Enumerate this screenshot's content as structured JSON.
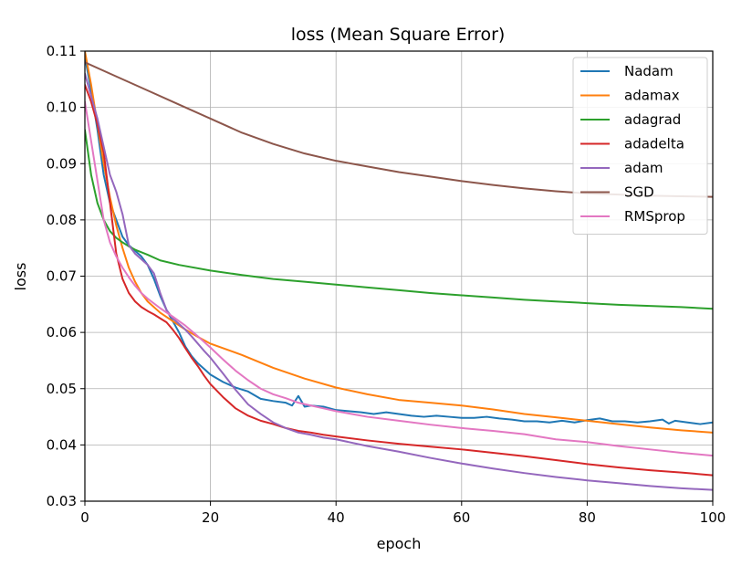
{
  "chart_data": {
    "type": "line",
    "title": "loss (Mean Square Error)",
    "xlabel": "epoch",
    "ylabel": "loss",
    "xlim": [
      0,
      100
    ],
    "ylim": [
      0.03,
      0.11
    ],
    "xticks": [
      0,
      20,
      40,
      60,
      80,
      100
    ],
    "xtick_labels": [
      "0",
      "20",
      "40",
      "60",
      "80",
      "100"
    ],
    "yticks": [
      0.03,
      0.04,
      0.05,
      0.06,
      0.07,
      0.08,
      0.09,
      0.1,
      0.11
    ],
    "ytick_labels": [
      "0.03",
      "0.04",
      "0.05",
      "0.06",
      "0.07",
      "0.08",
      "0.09",
      "0.10",
      "0.11"
    ],
    "grid": true,
    "legend_position": "top-right",
    "series": [
      {
        "name": "Nadam",
        "color": "#1f77b4",
        "points": [
          [
            0,
            0.109
          ],
          [
            1,
            0.103
          ],
          [
            2,
            0.096
          ],
          [
            3,
            0.088
          ],
          [
            4,
            0.083
          ],
          [
            5,
            0.08
          ],
          [
            6,
            0.077
          ],
          [
            7,
            0.0755
          ],
          [
            8,
            0.0745
          ],
          [
            9,
            0.0735
          ],
          [
            10,
            0.072
          ],
          [
            11,
            0.0695
          ],
          [
            12,
            0.0665
          ],
          [
            13,
            0.064
          ],
          [
            14,
            0.062
          ],
          [
            15,
            0.06
          ],
          [
            16,
            0.0575
          ],
          [
            17,
            0.0558
          ],
          [
            18,
            0.0545
          ],
          [
            19,
            0.0535
          ],
          [
            20,
            0.0525
          ],
          [
            22,
            0.0512
          ],
          [
            24,
            0.0502
          ],
          [
            26,
            0.0495
          ],
          [
            28,
            0.0482
          ],
          [
            30,
            0.0478
          ],
          [
            32,
            0.0475
          ],
          [
            33,
            0.047
          ],
          [
            34,
            0.0487
          ],
          [
            35,
            0.0468
          ],
          [
            36,
            0.047
          ],
          [
            38,
            0.0468
          ],
          [
            40,
            0.0462
          ],
          [
            42,
            0.046
          ],
          [
            44,
            0.0458
          ],
          [
            46,
            0.0455
          ],
          [
            48,
            0.0458
          ],
          [
            50,
            0.0455
          ],
          [
            52,
            0.0452
          ],
          [
            54,
            0.045
          ],
          [
            56,
            0.0452
          ],
          [
            58,
            0.045
          ],
          [
            60,
            0.0448
          ],
          [
            62,
            0.0448
          ],
          [
            64,
            0.045
          ],
          [
            66,
            0.0447
          ],
          [
            68,
            0.0445
          ],
          [
            70,
            0.0442
          ],
          [
            72,
            0.0442
          ],
          [
            74,
            0.044
          ],
          [
            76,
            0.0443
          ],
          [
            78,
            0.044
          ],
          [
            80,
            0.0444
          ],
          [
            82,
            0.0447
          ],
          [
            84,
            0.0442
          ],
          [
            86,
            0.0442
          ],
          [
            88,
            0.044
          ],
          [
            90,
            0.0442
          ],
          [
            92,
            0.0445
          ],
          [
            93,
            0.0438
          ],
          [
            94,
            0.0443
          ],
          [
            96,
            0.044
          ],
          [
            98,
            0.0437
          ],
          [
            100,
            0.044
          ]
        ]
      },
      {
        "name": "adamax",
        "color": "#ff7f0e",
        "points": [
          [
            0,
            0.11
          ],
          [
            1,
            0.104
          ],
          [
            2,
            0.097
          ],
          [
            3,
            0.09
          ],
          [
            4,
            0.084
          ],
          [
            5,
            0.079
          ],
          [
            6,
            0.075
          ],
          [
            7,
            0.0715
          ],
          [
            8,
            0.069
          ],
          [
            9,
            0.067
          ],
          [
            10,
            0.0655
          ],
          [
            12,
            0.0635
          ],
          [
            14,
            0.062
          ],
          [
            16,
            0.0605
          ],
          [
            18,
            0.0592
          ],
          [
            20,
            0.058
          ],
          [
            25,
            0.056
          ],
          [
            30,
            0.0537
          ],
          [
            35,
            0.0518
          ],
          [
            40,
            0.0502
          ],
          [
            45,
            0.049
          ],
          [
            50,
            0.048
          ],
          [
            55,
            0.0475
          ],
          [
            60,
            0.047
          ],
          [
            65,
            0.0463
          ],
          [
            70,
            0.0455
          ],
          [
            75,
            0.0449
          ],
          [
            80,
            0.0443
          ],
          [
            85,
            0.0437
          ],
          [
            90,
            0.0431
          ],
          [
            95,
            0.0426
          ],
          [
            100,
            0.0422
          ]
        ]
      },
      {
        "name": "adagrad",
        "color": "#2ca02c",
        "points": [
          [
            0,
            0.096
          ],
          [
            1,
            0.088
          ],
          [
            2,
            0.083
          ],
          [
            3,
            0.08
          ],
          [
            4,
            0.078
          ],
          [
            5,
            0.0768
          ],
          [
            6,
            0.076
          ],
          [
            7,
            0.0753
          ],
          [
            8,
            0.0747
          ],
          [
            10,
            0.0738
          ],
          [
            12,
            0.0728
          ],
          [
            15,
            0.072
          ],
          [
            20,
            0.071
          ],
          [
            25,
            0.0702
          ],
          [
            30,
            0.0695
          ],
          [
            35,
            0.069
          ],
          [
            40,
            0.0685
          ],
          [
            45,
            0.068
          ],
          [
            50,
            0.0675
          ],
          [
            55,
            0.067
          ],
          [
            60,
            0.0666
          ],
          [
            65,
            0.0662
          ],
          [
            70,
            0.0658
          ],
          [
            75,
            0.0655
          ],
          [
            80,
            0.0652
          ],
          [
            85,
            0.0649
          ],
          [
            90,
            0.0647
          ],
          [
            95,
            0.0645
          ],
          [
            100,
            0.0642
          ]
        ]
      },
      {
        "name": "adadelta",
        "color": "#d62728",
        "points": [
          [
            0,
            0.104
          ],
          [
            1,
            0.101
          ],
          [
            2,
            0.097
          ],
          [
            3,
            0.092
          ],
          [
            4,
            0.083
          ],
          [
            5,
            0.074
          ],
          [
            6,
            0.0695
          ],
          [
            7,
            0.067
          ],
          [
            8,
            0.0655
          ],
          [
            9,
            0.0645
          ],
          [
            10,
            0.0638
          ],
          [
            11,
            0.0632
          ],
          [
            12,
            0.0625
          ],
          [
            13,
            0.0618
          ],
          [
            14,
            0.0605
          ],
          [
            15,
            0.059
          ],
          [
            16,
            0.0572
          ],
          [
            17,
            0.0555
          ],
          [
            18,
            0.054
          ],
          [
            19,
            0.0523
          ],
          [
            20,
            0.0508
          ],
          [
            22,
            0.0485
          ],
          [
            24,
            0.0465
          ],
          [
            26,
            0.0452
          ],
          [
            28,
            0.0443
          ],
          [
            30,
            0.0437
          ],
          [
            32,
            0.043
          ],
          [
            34,
            0.0425
          ],
          [
            36,
            0.0422
          ],
          [
            38,
            0.0418
          ],
          [
            40,
            0.0415
          ],
          [
            45,
            0.0408
          ],
          [
            50,
            0.0402
          ],
          [
            55,
            0.0397
          ],
          [
            60,
            0.0392
          ],
          [
            65,
            0.0386
          ],
          [
            70,
            0.038
          ],
          [
            75,
            0.0373
          ],
          [
            80,
            0.0366
          ],
          [
            85,
            0.036
          ],
          [
            90,
            0.0355
          ],
          [
            95,
            0.0351
          ],
          [
            100,
            0.0346
          ]
        ]
      },
      {
        "name": "adam",
        "color": "#9467bd",
        "points": [
          [
            0,
            0.106
          ],
          [
            1,
            0.102
          ],
          [
            2,
            0.098
          ],
          [
            3,
            0.093
          ],
          [
            4,
            0.088
          ],
          [
            5,
            0.085
          ],
          [
            6,
            0.081
          ],
          [
            7,
            0.0755
          ],
          [
            8,
            0.074
          ],
          [
            9,
            0.073
          ],
          [
            10,
            0.072
          ],
          [
            11,
            0.0705
          ],
          [
            12,
            0.067
          ],
          [
            13,
            0.064
          ],
          [
            14,
            0.0625
          ],
          [
            15,
            0.0615
          ],
          [
            16,
            0.0605
          ],
          [
            17,
            0.0593
          ],
          [
            18,
            0.058
          ],
          [
            19,
            0.0567
          ],
          [
            20,
            0.0555
          ],
          [
            22,
            0.0527
          ],
          [
            24,
            0.0498
          ],
          [
            26,
            0.0472
          ],
          [
            28,
            0.0455
          ],
          [
            30,
            0.044
          ],
          [
            32,
            0.043
          ],
          [
            34,
            0.0422
          ],
          [
            36,
            0.0418
          ],
          [
            38,
            0.0413
          ],
          [
            40,
            0.041
          ],
          [
            45,
            0.0398
          ],
          [
            50,
            0.0388
          ],
          [
            55,
            0.0377
          ],
          [
            60,
            0.0367
          ],
          [
            65,
            0.0358
          ],
          [
            70,
            0.035
          ],
          [
            75,
            0.0343
          ],
          [
            80,
            0.0337
          ],
          [
            85,
            0.0332
          ],
          [
            90,
            0.0327
          ],
          [
            95,
            0.0323
          ],
          [
            100,
            0.032
          ]
        ]
      },
      {
        "name": "SGD",
        "color": "#8c564b",
        "points": [
          [
            0,
            0.108
          ],
          [
            5,
            0.1055
          ],
          [
            10,
            0.103
          ],
          [
            15,
            0.1005
          ],
          [
            20,
            0.098
          ],
          [
            25,
            0.0955
          ],
          [
            30,
            0.0935
          ],
          [
            35,
            0.0918
          ],
          [
            40,
            0.0905
          ],
          [
            45,
            0.0895
          ],
          [
            50,
            0.0885
          ],
          [
            55,
            0.0877
          ],
          [
            60,
            0.0869
          ],
          [
            65,
            0.0862
          ],
          [
            70,
            0.0856
          ],
          [
            75,
            0.0851
          ],
          [
            80,
            0.0847
          ],
          [
            85,
            0.0845
          ],
          [
            90,
            0.0843
          ],
          [
            95,
            0.0842
          ],
          [
            100,
            0.0841
          ]
        ]
      },
      {
        "name": "RMSprop",
        "color": "#e377c2",
        "points": [
          [
            0,
            0.101
          ],
          [
            1,
            0.094
          ],
          [
            2,
            0.087
          ],
          [
            3,
            0.08
          ],
          [
            4,
            0.076
          ],
          [
            5,
            0.0735
          ],
          [
            6,
            0.0715
          ],
          [
            7,
            0.0698
          ],
          [
            8,
            0.0683
          ],
          [
            9,
            0.067
          ],
          [
            10,
            0.066
          ],
          [
            12,
            0.0643
          ],
          [
            14,
            0.0628
          ],
          [
            16,
            0.0612
          ],
          [
            18,
            0.0593
          ],
          [
            20,
            0.0573
          ],
          [
            22,
            0.0552
          ],
          [
            24,
            0.0532
          ],
          [
            26,
            0.0515
          ],
          [
            28,
            0.05
          ],
          [
            30,
            0.049
          ],
          [
            32,
            0.0483
          ],
          [
            34,
            0.0475
          ],
          [
            36,
            0.047
          ],
          [
            38,
            0.0465
          ],
          [
            40,
            0.046
          ],
          [
            45,
            0.045
          ],
          [
            50,
            0.0443
          ],
          [
            55,
            0.0436
          ],
          [
            60,
            0.043
          ],
          [
            65,
            0.0425
          ],
          [
            70,
            0.0419
          ],
          [
            75,
            0.041
          ],
          [
            80,
            0.0405
          ],
          [
            85,
            0.0398
          ],
          [
            90,
            0.0392
          ],
          [
            95,
            0.0386
          ],
          [
            100,
            0.0381
          ]
        ]
      }
    ]
  }
}
